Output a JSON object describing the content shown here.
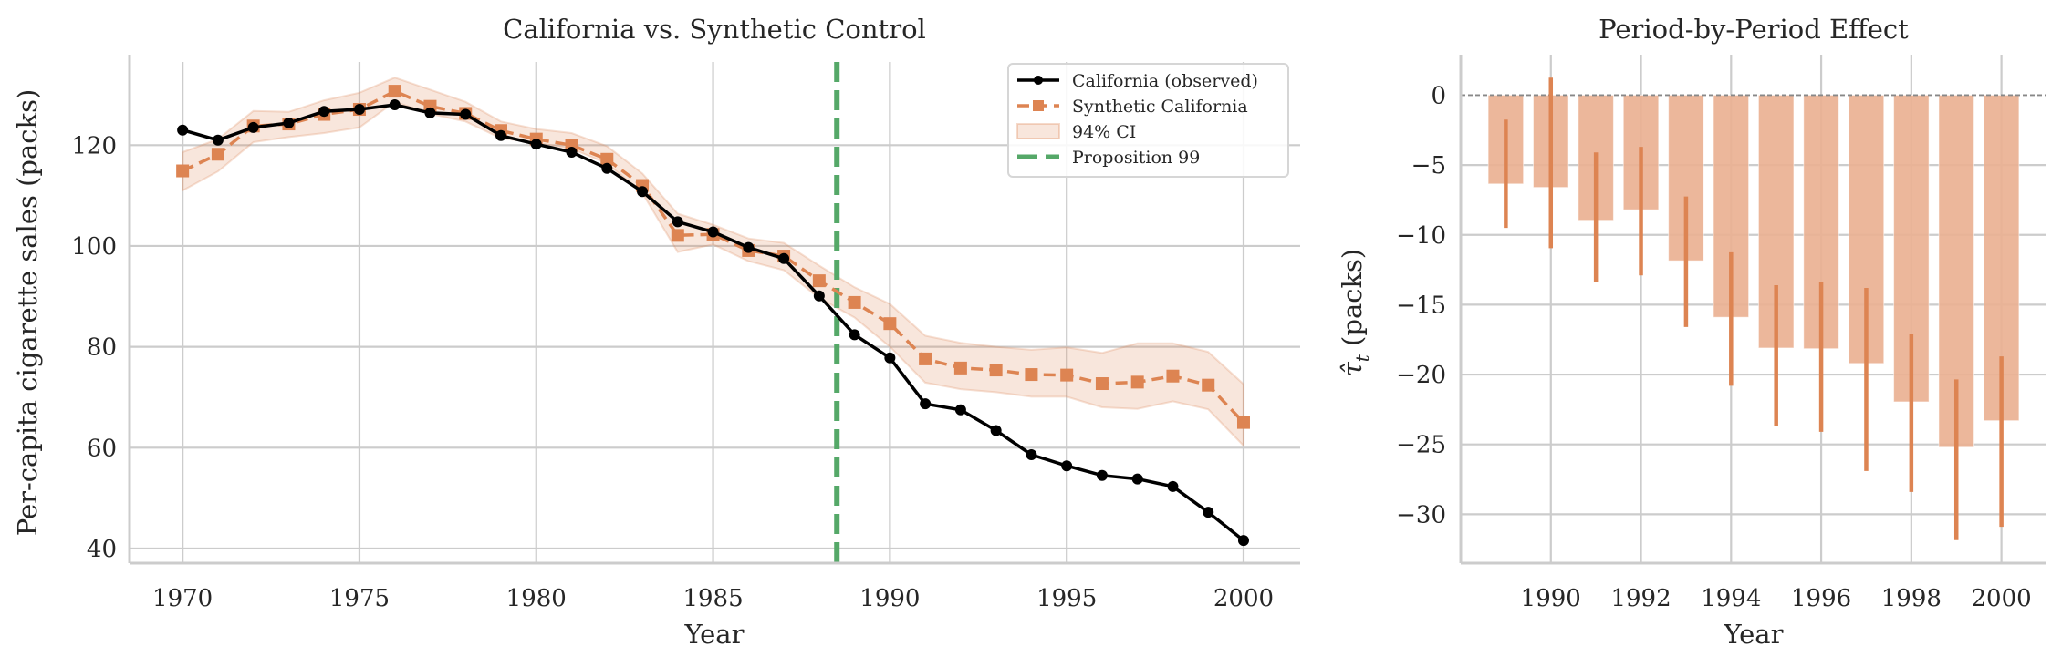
{
  "chart_data": [
    {
      "type": "line",
      "title": "California vs. Synthetic Control",
      "xlabel": "Year",
      "ylabel": "Per-capita cigarette sales (packs)",
      "xlim": [
        1968.5,
        2001.6
      ],
      "ylim": [
        37.1,
        136.5
      ],
      "xticks": [
        1970,
        1975,
        1980,
        1985,
        1990,
        1995,
        2000
      ],
      "yticks": [
        40,
        60,
        80,
        100,
        120
      ],
      "grid": true,
      "legend_position": "top-right",
      "x": [
        1970,
        1971,
        1972,
        1973,
        1974,
        1975,
        1976,
        1977,
        1978,
        1979,
        1980,
        1981,
        1982,
        1983,
        1984,
        1985,
        1986,
        1987,
        1988,
        1989,
        1990,
        1991,
        1992,
        1993,
        1994,
        1995,
        1996,
        1997,
        1998,
        1999,
        2000
      ],
      "series": [
        {
          "name": "California (observed)",
          "style": "solid-line-circle-markers",
          "color": "#000000",
          "values": [
            123.0,
            121.0,
            123.5,
            124.4,
            126.7,
            127.1,
            128.0,
            126.4,
            126.1,
            121.9,
            120.2,
            118.6,
            115.4,
            110.8,
            104.8,
            102.8,
            99.7,
            97.5,
            90.1,
            82.4,
            77.8,
            68.7,
            67.5,
            63.4,
            58.6,
            56.4,
            54.5,
            53.8,
            52.3,
            47.2,
            41.6
          ]
        },
        {
          "name": "Synthetic California",
          "style": "dashed-line-square-markers",
          "color": "#dd8452",
          "values": [
            114.9,
            118.2,
            123.8,
            124.2,
            126.1,
            127.1,
            130.7,
            127.7,
            126.3,
            122.9,
            121.2,
            120.0,
            117.2,
            112.0,
            102.1,
            102.3,
            99.1,
            98.0,
            93.1,
            88.8,
            84.6,
            77.6,
            75.8,
            75.4,
            74.5,
            74.4,
            72.7,
            73.0,
            74.2,
            72.4,
            65.0
          ]
        }
      ],
      "ci_band": {
        "name": "94% CI",
        "color": "#dd8452",
        "lower": [
          111.0,
          114.8,
          120.6,
          121.6,
          122.4,
          123.5,
          128.6,
          126.2,
          124.7,
          121.4,
          120.5,
          119.3,
          116.4,
          110.5,
          98.8,
          100.3,
          97.0,
          95.2,
          89.7,
          85.8,
          80.0,
          72.9,
          71.6,
          71.0,
          70.1,
          70.1,
          68.0,
          67.7,
          69.2,
          67.6,
          60.4
        ],
        "upper": [
          118.6,
          121.2,
          126.8,
          126.6,
          128.9,
          130.4,
          133.4,
          131.0,
          128.6,
          124.7,
          123.2,
          122.4,
          119.8,
          114.4,
          106.4,
          104.2,
          101.5,
          100.6,
          96.1,
          91.8,
          88.5,
          82.2,
          80.8,
          80.0,
          79.4,
          79.9,
          78.8,
          80.7,
          80.7,
          79.0,
          72.6
        ]
      },
      "vline": {
        "name": "Proposition 99",
        "x": 1988.5,
        "color": "#55a868",
        "style": "dashed"
      }
    },
    {
      "type": "bar",
      "title": "Period-by-Period Effect",
      "xlabel": "Year",
      "ylabel_main": "τ̂",
      "ylabel_sub": "t",
      "ylabel_rest": " (packs)",
      "xlim": [
        1988.0,
        2001.0
      ],
      "ylim": [
        -33.5,
        2.9
      ],
      "xticks": [
        1990,
        1992,
        1994,
        1996,
        1998,
        2000
      ],
      "yticks": [
        0,
        -5,
        -10,
        -15,
        -20,
        -25,
        -30
      ],
      "grid": true,
      "bar_color": "#eab193",
      "errorbar_color": "#dd8452",
      "reference_line": {
        "y": 0,
        "style": "dashed",
        "color": "#888888"
      },
      "categories": [
        1989,
        1990,
        1991,
        1992,
        1993,
        1994,
        1995,
        1996,
        1997,
        1998,
        1999,
        2000
      ],
      "values": [
        -6.35,
        -6.6,
        -8.95,
        -8.2,
        -11.85,
        -15.9,
        -18.1,
        -18.15,
        -19.2,
        -21.95,
        -25.2,
        -23.3
      ],
      "error_low": [
        -9.5,
        -10.95,
        -13.4,
        -12.9,
        -16.6,
        -20.8,
        -23.65,
        -24.1,
        -26.9,
        -28.4,
        -31.85,
        -30.9
      ],
      "error_high": [
        -1.75,
        1.25,
        -4.1,
        -3.7,
        -7.25,
        -11.25,
        -13.6,
        -13.4,
        -13.8,
        -17.1,
        -20.35,
        -18.7
      ]
    }
  ],
  "legend": {
    "items": [
      {
        "label": "California (observed)",
        "kind": "line-marker-circle",
        "color": "#000000"
      },
      {
        "label": "Synthetic California",
        "kind": "dashed-marker-square",
        "color": "#dd8452"
      },
      {
        "label": "94% CI",
        "kind": "patch",
        "color": "#dd8452"
      },
      {
        "label": "Proposition 99",
        "kind": "dashed",
        "color": "#55a868"
      }
    ]
  }
}
